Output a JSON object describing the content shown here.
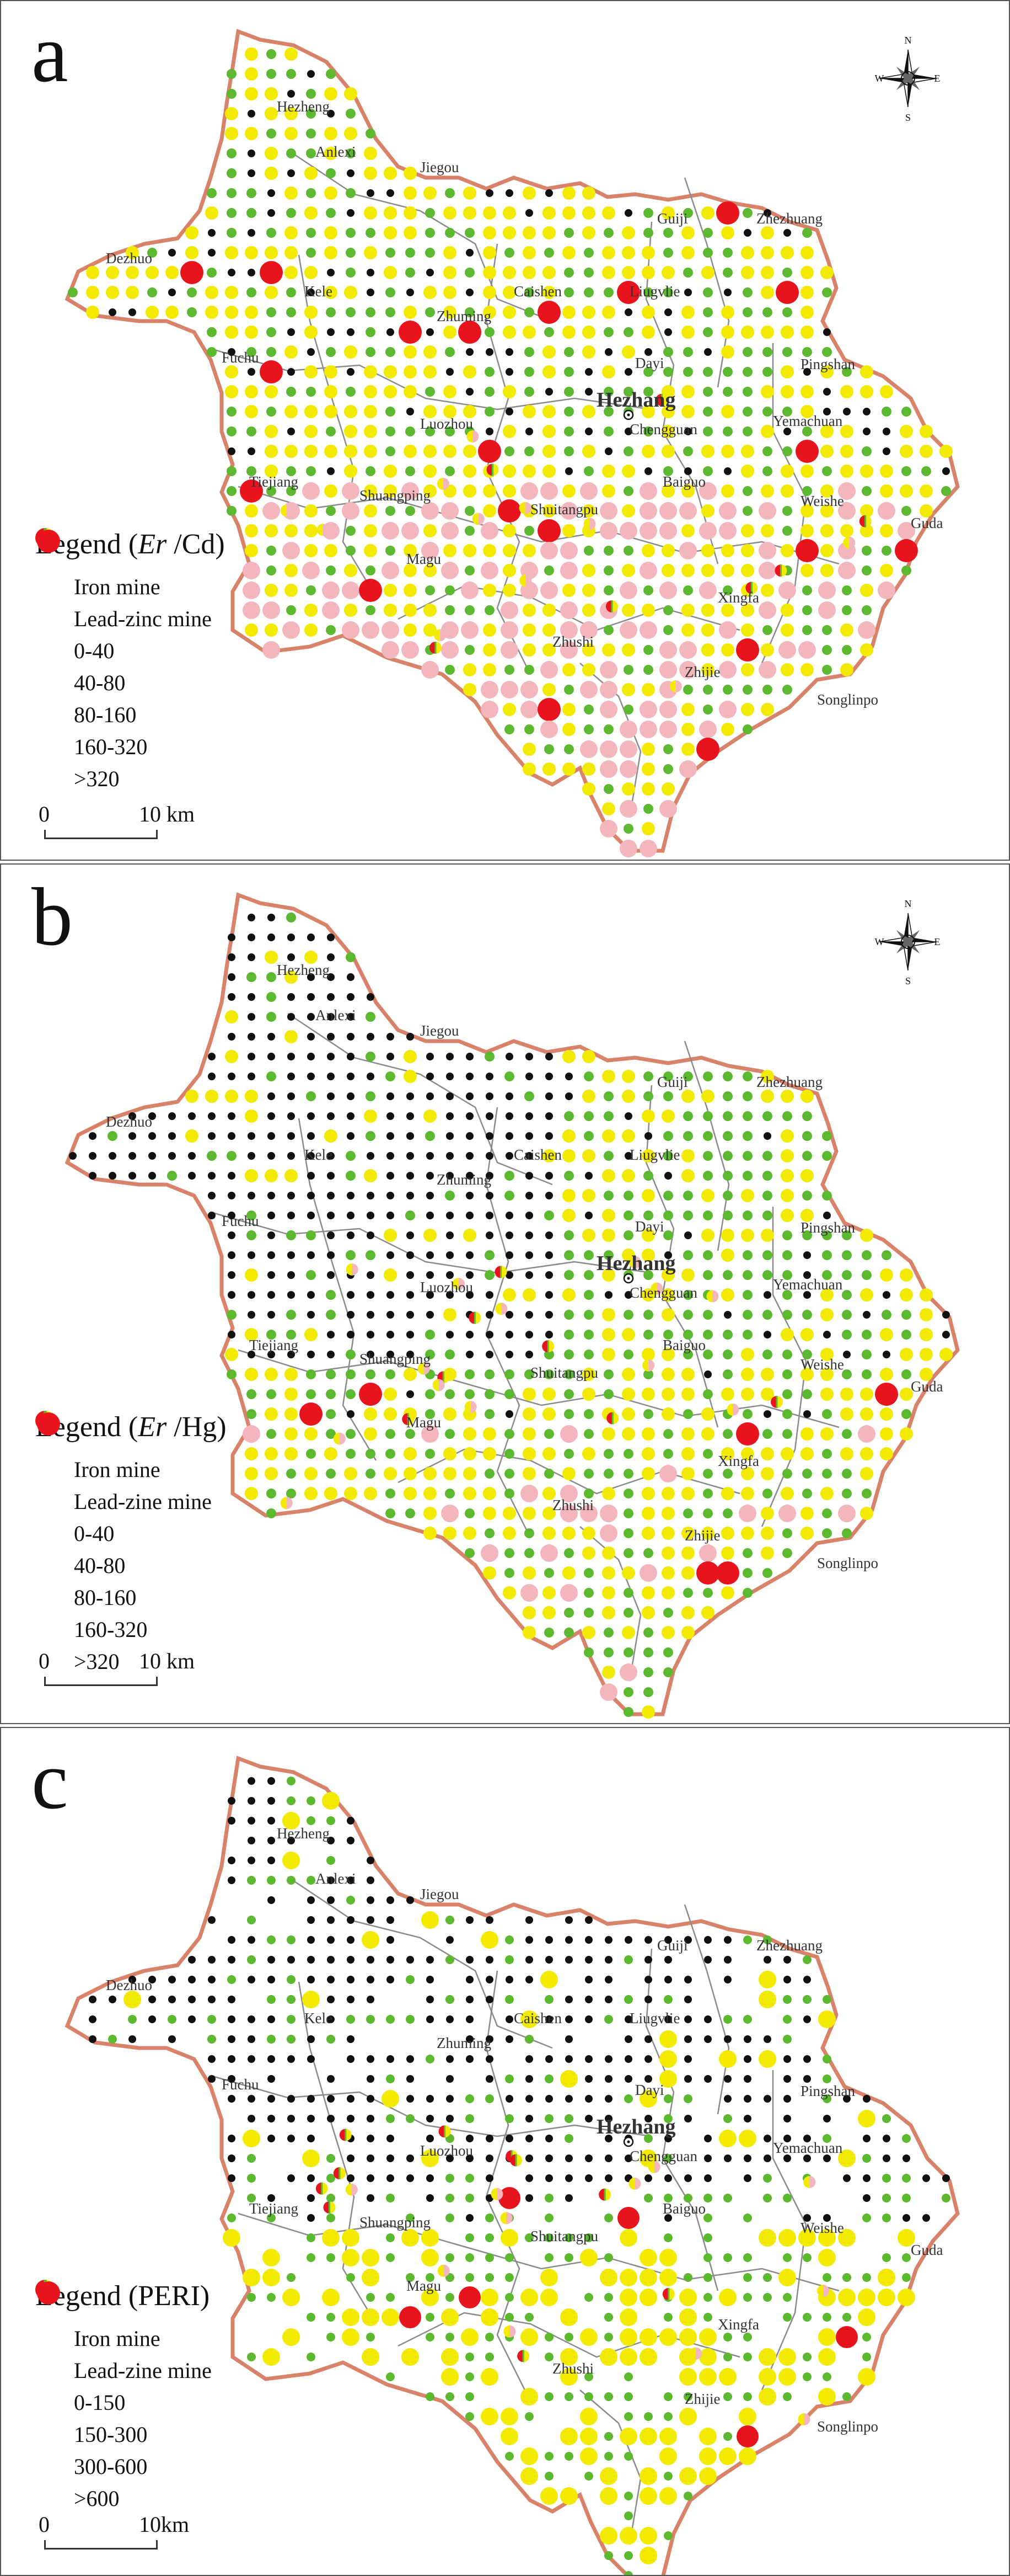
{
  "colors": {
    "boundary": "#d9826a",
    "inner_boundary": "#8a8a8a",
    "class_0": "#111111",
    "class_1": "#5cb82e",
    "class_2": "#f2ea00",
    "class_3": "#f4b6bd",
    "class_4": "#e8141d",
    "iron_left": "#f2ea00",
    "iron_right": "#f4b6bd",
    "leadzinc_left": "#e8141d",
    "leadzinc_right": "#5cb82e"
  },
  "places": [
    "Hezheng",
    "Anlexi",
    "Jiegou",
    "Dezhuo",
    "Guiji",
    "Zhezhuang",
    "Kele",
    "Caishen",
    "Liugvlie",
    "Fuchu",
    "Zhuming",
    "Dayi",
    "Pingshan",
    "Hezhang",
    "Chengguan",
    "Yemachuan",
    "Luozhou",
    "Tiejiang",
    "Shuangping",
    "Shuitangpu",
    "Baiguo",
    "Weishe",
    "Guda",
    "Magu",
    "Xingfa",
    "Zhushi",
    "Zhijie",
    "Songlinpo"
  ],
  "compass": {
    "n": "N",
    "s": "S",
    "e": "E",
    "w": "W"
  },
  "panels": [
    {
      "letter": "a",
      "legend_title_prefix": "Legend (",
      "legend_title_em": "Er",
      "legend_title_suffix": " /Cd)",
      "iron_label": "Iron mine",
      "leadzinc_label": "Lead-zinc mine",
      "classes": [
        "0-40",
        "40-80",
        "80-160",
        "160-320",
        ">320"
      ],
      "scale_start": "0",
      "scale_end": "10 km",
      "show_compass": true
    },
    {
      "letter": "b",
      "legend_title_prefix": "Legend (",
      "legend_title_em": "Er",
      "legend_title_suffix": " /Hg)",
      "iron_label": "Iron mine",
      "leadzinc_label": "Lead-zine mine",
      "classes": [
        "0-40",
        "40-80",
        "80-160",
        "160-320",
        ">320"
      ],
      "scale_start": "0",
      "scale_end": "10 km",
      "show_compass": true
    },
    {
      "letter": "c",
      "legend_title_prefix": "Legend (PERI)",
      "legend_title_em": "",
      "legend_title_suffix": "",
      "iron_label": "Iron mine",
      "leadzinc_label": "Lead-zine mine",
      "classes": [
        "0-150",
        "150-300",
        "300-600",
        ">600"
      ],
      "scale_start": "0",
      "scale_end": "10km",
      "show_compass": false
    }
  ]
}
